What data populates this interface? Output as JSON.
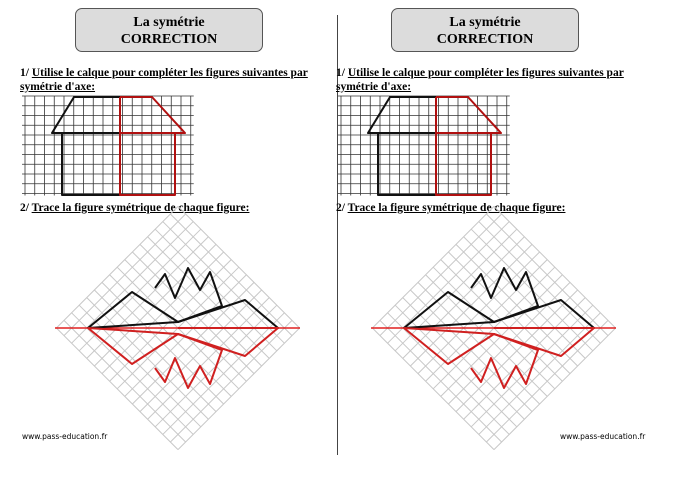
{
  "columns": [
    {
      "title": {
        "line1": "La symétrie",
        "line2": "CORRECTION"
      },
      "exercise1": {
        "number": "1/",
        "instruction": "Utilise le calque pour compléter les figures suivantes par symétrie d'axe:"
      },
      "exercise2": {
        "number": "2/",
        "instruction": "Trace la figure symétrique de chaque figure:"
      },
      "footer": "www.pass-education.fr"
    },
    {
      "title": {
        "line1": "La symétrie",
        "line2": "CORRECTION"
      },
      "exercise1": {
        "number": "1/",
        "instruction": "Utilise le calque pour compléter les figures suivantes par symétrie d'axe:"
      },
      "exercise2": {
        "number": "2/",
        "instruction": "Trace la figure symétrique de chaque figure:"
      },
      "footer": "www.pass-education.fr"
    }
  ]
}
